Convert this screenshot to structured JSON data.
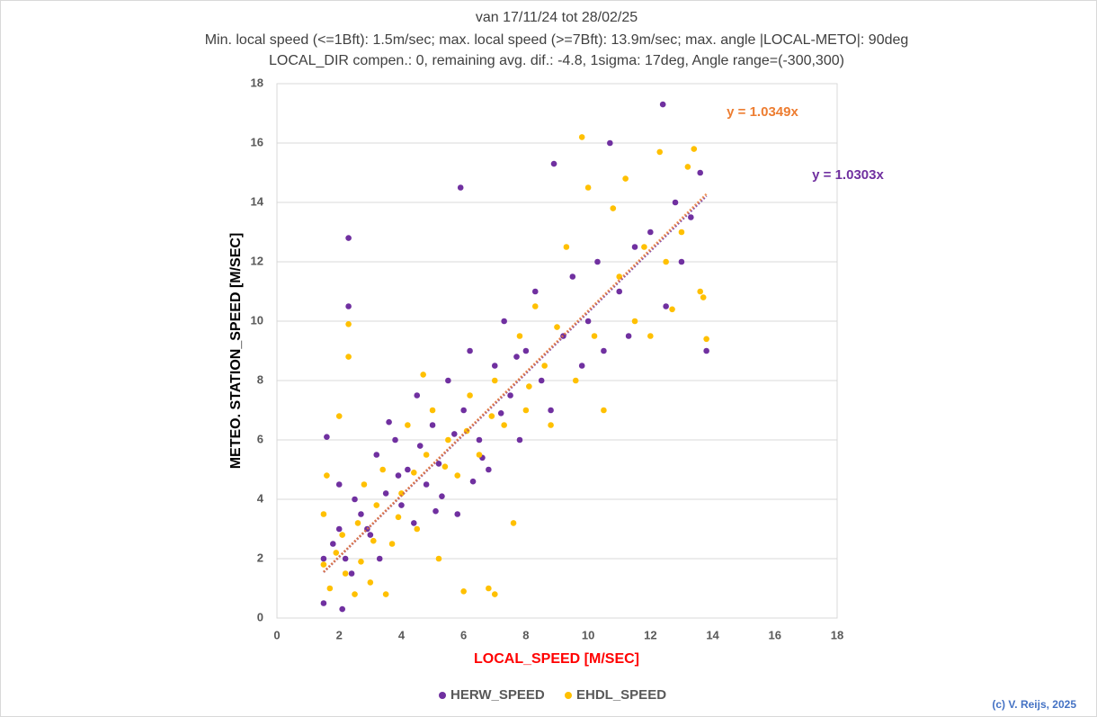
{
  "chart_data": {
    "type": "scatter",
    "title": "van 17/11/24 tot 28/02/25",
    "subtitle": [
      "Min. local speed (<=1Bft): 1.5m/sec; max. local speed (>=7Bft): 13.9m/sec; max. angle |LOCAL-METO|: 90deg",
      "LOCAL_DIR compen.: 0, remaining avg. dif.: -4.8, 1sigma: 17deg, Angle range=(-300,300)"
    ],
    "x_label": "LOCAL_SPEED [M/SEC]",
    "y_label": "METEO. STATION_SPEED [M/SEC]",
    "xlim": [
      0,
      18
    ],
    "xticks": [
      0,
      2,
      4,
      6,
      8,
      10,
      12,
      14,
      16,
      18
    ],
    "ylim": [
      0,
      18
    ],
    "yticks": [
      0,
      2,
      4,
      6,
      8,
      10,
      12,
      14,
      16,
      18
    ],
    "grid": true,
    "legend": "bottom",
    "series": [
      {
        "name": "HERW_SPEED",
        "color": "#7030a0",
        "x": [
          1.5,
          1.5,
          1.6,
          1.8,
          2.0,
          2.1,
          2.2,
          2.3,
          2.3,
          2.5,
          2.7,
          3.0,
          3.2,
          3.5,
          3.8,
          4.0,
          4.2,
          4.5,
          4.8,
          5.0,
          5.2,
          5.5,
          5.8,
          5.9,
          6.0,
          6.2,
          6.5,
          6.8,
          7.0,
          7.3,
          7.5,
          7.8,
          8.0,
          8.3,
          8.5,
          8.8,
          8.9,
          9.2,
          9.5,
          9.8,
          10.0,
          10.3,
          10.5,
          10.7,
          11.0,
          11.3,
          11.5,
          12.0,
          12.4,
          12.5,
          12.8,
          13.0,
          13.3,
          13.6,
          13.8,
          3.6,
          4.4,
          5.3,
          6.6,
          7.2,
          2.0,
          2.4,
          2.9,
          3.3,
          3.9,
          4.6,
          5.1,
          5.7,
          6.3,
          7.7
        ],
        "values": [
          0.5,
          2.0,
          6.1,
          2.5,
          3.0,
          0.3,
          2.0,
          12.8,
          10.5,
          4.0,
          3.5,
          2.8,
          5.5,
          4.2,
          6.0,
          3.8,
          5.0,
          7.5,
          4.5,
          6.5,
          5.2,
          8.0,
          3.5,
          14.5,
          7.0,
          9.0,
          6.0,
          5.0,
          8.5,
          10.0,
          7.5,
          6.0,
          9.0,
          11.0,
          8.0,
          7.0,
          15.3,
          9.5,
          11.5,
          8.5,
          10.0,
          12.0,
          9.0,
          16.0,
          11.0,
          9.5,
          12.5,
          13.0,
          17.3,
          10.5,
          14.0,
          12.0,
          13.5,
          15.0,
          9.0,
          6.6,
          3.2,
          4.1,
          5.4,
          6.9,
          4.5,
          1.5,
          3.0,
          2.0,
          4.8,
          5.8,
          3.6,
          6.2,
          4.6,
          8.8
        ],
        "trendline": {
          "slope": 1.0303,
          "label": "y = 1.0303x",
          "color": "#7030a0"
        }
      },
      {
        "name": "EHDL_SPEED",
        "color": "#ffc000",
        "x": [
          1.5,
          1.5,
          1.6,
          1.7,
          1.9,
          2.0,
          2.2,
          2.3,
          2.3,
          2.5,
          2.6,
          2.8,
          3.0,
          3.2,
          3.4,
          3.7,
          4.0,
          4.2,
          4.5,
          4.8,
          5.0,
          5.2,
          5.5,
          5.8,
          6.0,
          6.2,
          6.5,
          6.8,
          7.0,
          7.0,
          7.3,
          7.6,
          7.8,
          8.0,
          8.3,
          8.6,
          8.8,
          9.0,
          9.3,
          9.6,
          9.8,
          10.0,
          10.2,
          10.5,
          10.8,
          11.0,
          11.2,
          11.5,
          11.8,
          12.0,
          12.3,
          12.5,
          12.7,
          13.0,
          13.2,
          13.4,
          13.6,
          13.7,
          13.8,
          3.5,
          2.1,
          2.7,
          3.1,
          3.9,
          4.4,
          5.4,
          6.1,
          6.9,
          8.1,
          4.7
        ],
        "values": [
          1.8,
          3.5,
          4.8,
          1.0,
          2.2,
          6.8,
          1.5,
          9.9,
          8.8,
          0.8,
          3.2,
          4.5,
          1.2,
          3.8,
          5.0,
          2.5,
          4.2,
          6.5,
          3.0,
          5.5,
          7.0,
          2.0,
          6.0,
          4.8,
          0.9,
          7.5,
          5.5,
          1.0,
          0.8,
          8.0,
          6.5,
          3.2,
          9.5,
          7.0,
          10.5,
          8.5,
          6.5,
          9.8,
          12.5,
          8.0,
          16.2,
          14.5,
          9.5,
          7.0,
          13.8,
          11.5,
          14.8,
          10.0,
          12.5,
          9.5,
          15.7,
          12.0,
          10.4,
          13.0,
          15.2,
          15.8,
          11.0,
          10.8,
          9.4,
          0.8,
          2.8,
          1.9,
          2.6,
          3.4,
          4.9,
          5.1,
          6.3,
          6.8,
          7.8,
          8.2
        ],
        "trendline": {
          "slope": 1.0349,
          "label": "y = 1.0349x",
          "color": "#ed7d31"
        }
      }
    ],
    "trend_x": [
      1.5,
      13.8
    ],
    "credit": "(c) V. Reijs, 2025"
  }
}
